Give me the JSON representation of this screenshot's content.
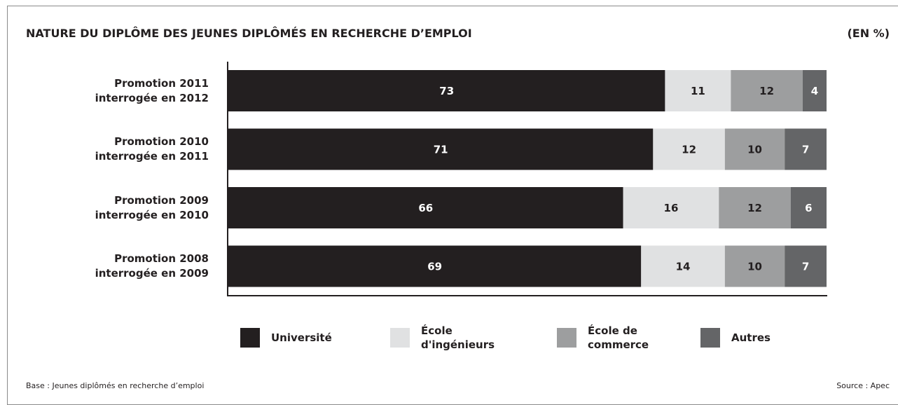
{
  "chart_data": {
    "type": "stacked_barh",
    "title": "NATURE DU DIPLÔME DES JEUNES DIPLÔMÉS EN RECHERCHE D’EMPLOI",
    "unit_label": "(EN %)",
    "categories": [
      "Promotion 2011 interrogée en 2012",
      "Promotion 2010 interrogée en 2011",
      "Promotion 2009 interrogée en 2010",
      "Promotion 2008 interrogée en 2009"
    ],
    "series": [
      {
        "name": "Université",
        "color": "#231f20",
        "label_color": "#ffffff",
        "values": [
          73,
          71,
          66,
          69
        ]
      },
      {
        "name": "École d'ingénieurs",
        "color": "#e0e1e2",
        "label_color": "#231f20",
        "values": [
          11,
          12,
          16,
          14
        ]
      },
      {
        "name": "École de commerce",
        "color": "#9d9e9f",
        "label_color": "#231f20",
        "values": [
          12,
          10,
          12,
          10
        ]
      },
      {
        "name": "Autres",
        "color": "#646567",
        "label_color": "#ffffff",
        "values": [
          4,
          7,
          6,
          7
        ]
      }
    ],
    "xlim": [
      0,
      100
    ],
    "footnote": "Base : Jeunes diplômés en recherche d’emploi",
    "source": "Source : Apec"
  }
}
